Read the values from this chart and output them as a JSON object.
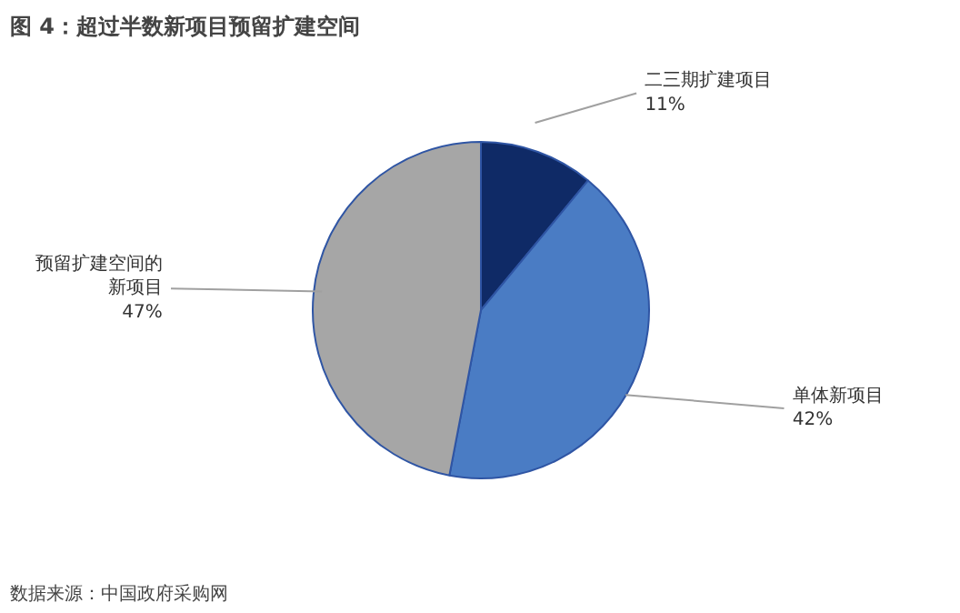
{
  "chart_data": {
    "type": "pie",
    "title": "图 4：超过半数新项目预留扩建空间",
    "categories": [
      "二三期扩建项目",
      "单体新项目",
      "预留扩建空间的新项目"
    ],
    "values": [
      11,
      42,
      47
    ],
    "colors": [
      "#0f2a66",
      "#4a7cc4",
      "#a6a6a6"
    ],
    "value_labels": [
      "11%",
      "42%",
      "47%"
    ],
    "annotations": [
      "数据来源：中国政府采购网"
    ]
  }
}
